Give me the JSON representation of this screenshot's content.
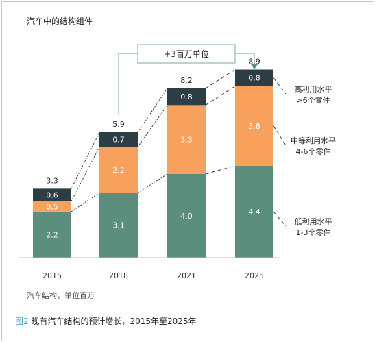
{
  "figure": {
    "number_label": "图2",
    "caption": "现有汽车结构的预计增长，2015年至2025年"
  },
  "chart_data": {
    "type": "bar",
    "stacked": true,
    "title": "汽车中的结构组件",
    "footnote": "汽车结构，单位百万",
    "categories": [
      "2015",
      "2018",
      "2021",
      "2025"
    ],
    "totals": [
      "3.3",
      "5.9",
      "8.2",
      "8.9"
    ],
    "series": [
      {
        "name": "低利用水平",
        "name_sub": "1-3个零件",
        "color": "#5b8e7d",
        "values": [
          2.2,
          3.1,
          4.0,
          4.4
        ],
        "labels": [
          "2.2",
          "3.1",
          "4.0",
          "4.4"
        ]
      },
      {
        "name": "中等利用水平",
        "name_sub": "4-6个零件",
        "color": "#f7a15c",
        "values": [
          0.5,
          2.2,
          3.3,
          3.8
        ],
        "labels": [
          "0.5",
          "2.2",
          "3.3",
          "3.8"
        ]
      },
      {
        "name": "高利用水平",
        "name_sub": ">6个零件",
        "color": "#2c3e44",
        "values": [
          0.6,
          0.7,
          0.8,
          0.8
        ],
        "labels": [
          "0.6",
          "0.7",
          "0.8",
          "0.8"
        ]
      }
    ],
    "ylim": [
      0,
      10
    ],
    "growth_annotation": "+3百万单位",
    "grid": false,
    "legend": "right"
  }
}
